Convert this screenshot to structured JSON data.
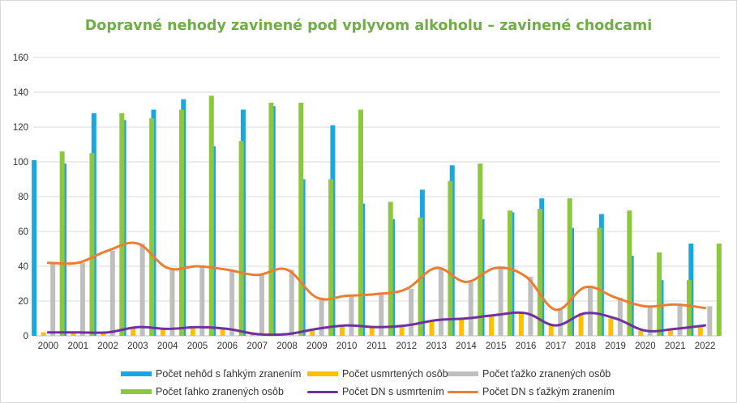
{
  "chart_data": {
    "type": "bar",
    "title": "Dopravné nehody zavinené pod vplyvom alkoholu – zavinené chodcami",
    "xlabel": "",
    "ylabel": "",
    "ylim": [
      0,
      160
    ],
    "yticks": [
      "0",
      "20",
      "40",
      "60",
      "80",
      "100",
      "120",
      "140",
      "160"
    ],
    "grid": true,
    "legend_position": "bottom",
    "categories": [
      "2000",
      "2001",
      "2002",
      "2003",
      "2004",
      "2005",
      "2006",
      "2007",
      "2008",
      "2009",
      "2010",
      "2011",
      "2012",
      "2013",
      "2014",
      "2015",
      "2016",
      "2017",
      "2018",
      "2019",
      "2020",
      "2021",
      "2022"
    ],
    "series": [
      {
        "name": "Počet nehôd s ľahkým zranením",
        "kind": "bar",
        "color": "#1aa7e0",
        "values": [
          101,
          99,
          128,
          124,
          130,
          136,
          109,
          130,
          132,
          90,
          121,
          76,
          67,
          84,
          98,
          67,
          71,
          79,
          62,
          70,
          46,
          32,
          53
        ]
      },
      {
        "name": "Počet usmrtených osôb",
        "kind": "bar",
        "color": "#ffc000",
        "values": [
          2,
          2,
          2,
          5,
          4,
          5,
          4,
          1,
          1,
          4,
          6,
          5,
          6,
          9,
          10,
          12,
          13,
          6,
          13,
          10,
          3,
          4,
          6
        ]
      },
      {
        "name": "Počet ťažko zranených osôb",
        "kind": "bar",
        "color": "#bfbfbf",
        "values": [
          42,
          42,
          49,
          53,
          39,
          40,
          38,
          35,
          38,
          22,
          23,
          24,
          27,
          39,
          31,
          39,
          34,
          15,
          28,
          22,
          17,
          18,
          17
        ]
      },
      {
        "name": "Počet ľahko zranených osôb",
        "kind": "bar",
        "color": "#8dc63f",
        "values": [
          106,
          105,
          128,
          125,
          130,
          138,
          112,
          134,
          134,
          90,
          130,
          77,
          68,
          89,
          99,
          72,
          73,
          79,
          62,
          72,
          48,
          32,
          53
        ]
      },
      {
        "name": "Počet DN  s usmrtením",
        "kind": "line",
        "color": "#7030a0",
        "values": [
          2,
          2,
          2,
          5,
          4,
          5,
          4,
          1,
          1,
          4,
          6,
          5,
          6,
          9,
          10,
          12,
          13,
          6,
          13,
          10,
          3,
          4,
          6
        ]
      },
      {
        "name": "Počet DN s ťažkým zranením",
        "kind": "line",
        "color": "#ed7d31",
        "values": [
          42,
          42,
          49,
          53,
          39,
          40,
          38,
          35,
          38,
          22,
          23,
          24,
          27,
          39,
          31,
          39,
          34,
          15,
          28,
          22,
          17,
          18,
          16
        ]
      }
    ]
  }
}
